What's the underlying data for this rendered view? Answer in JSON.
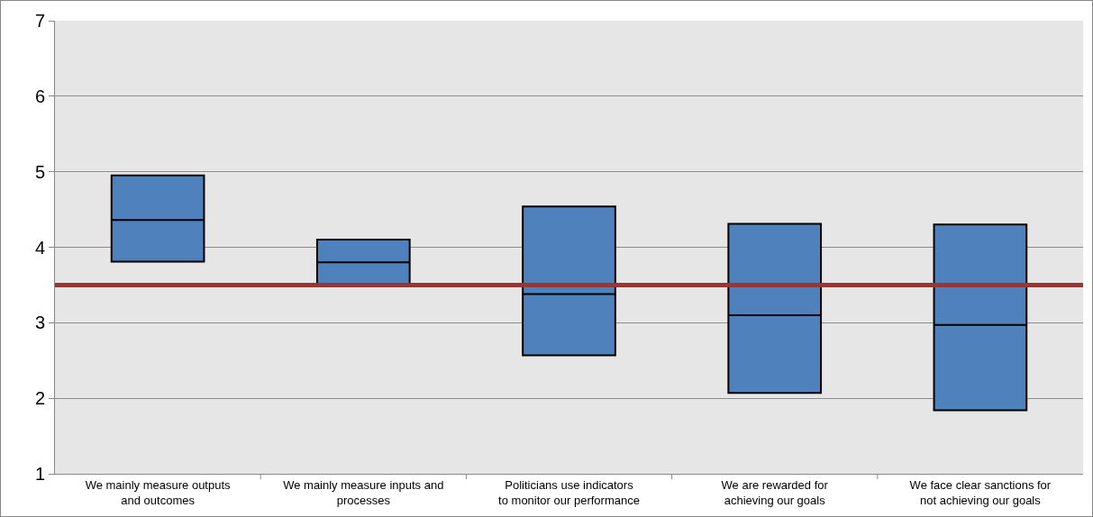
{
  "chart_data": {
    "type": "box",
    "categories": [
      "We mainly measure outputs and outcomes",
      "We mainly measure inputs and processes",
      "Politicians use indicators to monitor our performance",
      "We are rewarded for achieving our goals",
      "We face clear sanctions for not achieving our goals"
    ],
    "boxes": [
      {
        "low": 3.81,
        "q1": 3.81,
        "median": 4.36,
        "q3": 4.95,
        "high": 4.95
      },
      {
        "low": 3.5,
        "q1": 3.5,
        "median": 3.8,
        "q3": 4.1,
        "high": 4.1
      },
      {
        "low": 2.57,
        "q1": 2.57,
        "median": 3.38,
        "q3": 4.54,
        "high": 4.54
      },
      {
        "low": 2.07,
        "q1": 2.07,
        "median": 3.1,
        "q3": 4.31,
        "high": 4.31
      },
      {
        "low": 1.84,
        "q1": 1.84,
        "median": 2.97,
        "q3": 4.3,
        "high": 4.3
      }
    ],
    "color": "#4f81bd",
    "ylim": [
      1,
      7
    ],
    "yticks": [
      1,
      2,
      3,
      4,
      5,
      6,
      7
    ],
    "grid": "y",
    "ref_lines": [
      {
        "axis": "y",
        "value": 3.5,
        "color": "#953735"
      }
    ]
  }
}
